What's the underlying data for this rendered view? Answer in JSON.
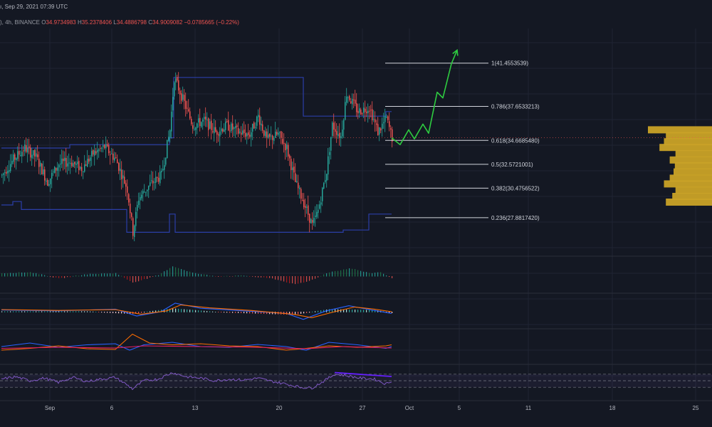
{
  "header": {
    "datetime": "ı, Sep 29, 2021 07:39 UTC",
    "symbol_fragment": "), 4h, BINANCE",
    "ohlc": [
      {
        "label": "O",
        "value": "34.9734983"
      },
      {
        "label": "H",
        "value": "35.2378406"
      },
      {
        "label": "L",
        "value": "34.4886798"
      },
      {
        "label": "C",
        "value": "34.9009082"
      }
    ],
    "change": "−0.0785665 (−0.22%)"
  },
  "chart_data": [
    {
      "type": "candlestick",
      "title": "",
      "interval": "4h",
      "exchange": "BINANCE",
      "x_ticks": [
        "Sep",
        "6",
        "13",
        "20",
        "27",
        "Oct",
        "5",
        "11",
        "18",
        "25"
      ],
      "ylim": [
        24.5,
        44.5
      ],
      "price_path": [
        [
          0,
          31.6
        ],
        [
          8,
          33.0
        ],
        [
          16,
          34.0
        ],
        [
          24,
          33.2
        ],
        [
          32,
          31.0
        ],
        [
          40,
          32.6
        ],
        [
          48,
          32.8
        ],
        [
          56,
          32.2
        ],
        [
          64,
          33.5
        ],
        [
          72,
          34.1
        ],
        [
          80,
          33.0
        ],
        [
          88,
          30.4
        ],
        [
          92,
          26.6
        ],
        [
          96,
          29.6
        ],
        [
          104,
          30.8
        ],
        [
          112,
          31.6
        ],
        [
          118,
          35.6
        ],
        [
          121,
          40.2
        ],
        [
          126,
          38.6
        ],
        [
          134,
          36.0
        ],
        [
          142,
          36.4
        ],
        [
          150,
          35.4
        ],
        [
          158,
          36.0
        ],
        [
          166,
          35.4
        ],
        [
          174,
          35.2
        ],
        [
          180,
          36.8
        ],
        [
          186,
          34.7
        ],
        [
          194,
          35.2
        ],
        [
          200,
          34.0
        ],
        [
          206,
          31.0
        ],
        [
          212,
          29.2
        ],
        [
          218,
          27.2
        ],
        [
          222,
          28.5
        ],
        [
          228,
          32.0
        ],
        [
          232,
          36.0
        ],
        [
          238,
          35.0
        ],
        [
          242,
          38.8
        ],
        [
          250,
          37.2
        ],
        [
          258,
          37.6
        ],
        [
          264,
          35.4
        ],
        [
          270,
          36.6
        ],
        [
          274,
          34.9
        ]
      ],
      "total_candles": 275,
      "fibonacci": [
        {
          "level": "1",
          "price": 41.4553539
        },
        {
          "level": "0.786",
          "price": 37.6533213
        },
        {
          "level": "0.618",
          "price": 34.668548
        },
        {
          "level": "0.5",
          "price": 32.5721001
        },
        {
          "level": "0.382",
          "price": 30.4756522
        },
        {
          "level": "0.236",
          "price": 27.881742
        }
      ],
      "fib_labels": [
        "1(41.4553539)",
        "0.786(37.6533213)",
        "0.618(34.6685480)",
        "0.5(32.5721001)",
        "0.382(30.4756522)",
        "0.236(27.8817420)"
      ],
      "projection_path": [
        [
          274,
          34.9
        ],
        [
          280,
          34.3
        ],
        [
          286,
          35.6
        ],
        [
          290,
          34.8
        ],
        [
          296,
          36.1
        ],
        [
          300,
          35.3
        ],
        [
          306,
          38.9
        ],
        [
          310,
          38.4
        ],
        [
          316,
          41.4
        ],
        [
          320,
          42.6
        ]
      ],
      "current_price": 34.9009082,
      "donchian_upper": [
        [
          0,
          34.0
        ],
        [
          40,
          34.0
        ],
        [
          48,
          34.3
        ],
        [
          112,
          34.3
        ],
        [
          118,
          34.9
        ],
        [
          121,
          40.2
        ],
        [
          200,
          40.2
        ],
        [
          212,
          36.8
        ],
        [
          240,
          36.8
        ],
        [
          270,
          37.2
        ],
        [
          274,
          37.2
        ]
      ],
      "donchian_lower": [
        [
          0,
          29.0
        ],
        [
          8,
          29.3
        ],
        [
          14,
          28.6
        ],
        [
          80,
          28.6
        ],
        [
          88,
          26.6
        ],
        [
          118,
          28.2
        ],
        [
          122,
          26.6
        ],
        [
          212,
          26.6
        ],
        [
          240,
          26.8
        ],
        [
          258,
          28.2
        ],
        [
          274,
          28.2
        ]
      ],
      "volume_profile": [
        {
          "price": 35.6,
          "size": 1.0
        },
        {
          "price": 35.1,
          "size": 0.72
        },
        {
          "price": 34.55,
          "size": 0.75
        },
        {
          "price": 34.05,
          "size": 0.82
        },
        {
          "price": 33.5,
          "size": 0.57
        },
        {
          "price": 32.95,
          "size": 0.66
        },
        {
          "price": 32.45,
          "size": 0.58
        },
        {
          "price": 31.9,
          "size": 0.6
        },
        {
          "price": 31.35,
          "size": 0.66
        },
        {
          "price": 30.85,
          "size": 0.75
        },
        {
          "price": 30.3,
          "size": 0.57
        },
        {
          "price": 29.75,
          "size": 0.62
        },
        {
          "price": 29.25,
          "size": 0.72
        }
      ]
    },
    {
      "type": "bar",
      "title": "",
      "histogram_path": [
        [
          0,
          0.3
        ],
        [
          20,
          0.4
        ],
        [
          40,
          -0.2
        ],
        [
          60,
          0.2
        ],
        [
          80,
          0.3
        ],
        [
          92,
          -0.6
        ],
        [
          110,
          0.1
        ],
        [
          120,
          1.0
        ],
        [
          135,
          0.3
        ],
        [
          150,
          0.0
        ],
        [
          170,
          0.05
        ],
        [
          190,
          -0.2
        ],
        [
          206,
          -0.8
        ],
        [
          215,
          -0.5
        ],
        [
          230,
          0.4
        ],
        [
          245,
          0.8
        ],
        [
          258,
          0.3
        ],
        [
          266,
          0.4
        ],
        [
          274,
          -0.2
        ]
      ]
    },
    {
      "type": "line",
      "title": "",
      "series": [
        {
          "color": "#2962ff",
          "path": [
            [
              0,
              0.2
            ],
            [
              40,
              0.1
            ],
            [
              80,
              0.3
            ],
            [
              95,
              -0.5
            ],
            [
              112,
              0.0
            ],
            [
              122,
              1.0
            ],
            [
              140,
              0.4
            ],
            [
              170,
              0.1
            ],
            [
              200,
              -0.2
            ],
            [
              212,
              -0.9
            ],
            [
              228,
              0.1
            ],
            [
              244,
              0.7
            ],
            [
              260,
              0.2
            ],
            [
              274,
              -0.2
            ]
          ]
        },
        {
          "color": "#ff6d00",
          "path": [
            [
              0,
              0.25
            ],
            [
              40,
              0.15
            ],
            [
              80,
              0.25
            ],
            [
              98,
              -0.3
            ],
            [
              116,
              0.1
            ],
            [
              126,
              0.8
            ],
            [
              146,
              0.45
            ],
            [
              175,
              0.15
            ],
            [
              205,
              -0.3
            ],
            [
              218,
              -0.7
            ],
            [
              234,
              0.0
            ],
            [
              248,
              0.55
            ],
            [
              262,
              0.3
            ],
            [
              274,
              0.0
            ]
          ]
        }
      ],
      "histogram_path": [
        [
          0,
          0.05
        ],
        [
          60,
          0.05
        ],
        [
          92,
          -0.2
        ],
        [
          120,
          0.4
        ],
        [
          150,
          0.0
        ],
        [
          205,
          -0.3
        ],
        [
          230,
          0.3
        ],
        [
          262,
          0.2
        ],
        [
          274,
          -0.1
        ]
      ]
    },
    {
      "type": "line",
      "title": "",
      "ylim": [
        0,
        100
      ],
      "series": [
        {
          "color": "#2962ff",
          "path": [
            [
              0,
              50
            ],
            [
              20,
              60
            ],
            [
              40,
              48
            ],
            [
              60,
              55
            ],
            [
              80,
              58
            ],
            [
              90,
              40
            ],
            [
              100,
              55
            ],
            [
              120,
              62
            ],
            [
              140,
              50
            ],
            [
              160,
              48
            ],
            [
              180,
              56
            ],
            [
              200,
              50
            ],
            [
              214,
              40
            ],
            [
              230,
              62
            ],
            [
              250,
              55
            ],
            [
              270,
              45
            ],
            [
              274,
              50
            ]
          ]
        },
        {
          "color": "#ff6d00",
          "path": [
            [
              0,
              40
            ],
            [
              20,
              45
            ],
            [
              40,
              52
            ],
            [
              60,
              44
            ],
            [
              80,
              42
            ],
            [
              92,
              85
            ],
            [
              104,
              60
            ],
            [
              120,
              55
            ],
            [
              140,
              58
            ],
            [
              160,
              52
            ],
            [
              180,
              50
            ],
            [
              200,
              40
            ],
            [
              214,
              45
            ],
            [
              230,
              52
            ],
            [
              250,
              48
            ],
            [
              270,
              52
            ],
            [
              274,
              55
            ]
          ]
        },
        {
          "color": "#e91e63",
          "path": [
            [
              0,
              45
            ],
            [
              40,
              48
            ],
            [
              80,
              46
            ],
            [
              100,
              52
            ],
            [
              140,
              50
            ],
            [
              180,
              48
            ],
            [
              214,
              44
            ],
            [
              240,
              50
            ],
            [
              274,
              46
            ]
          ]
        }
      ]
    },
    {
      "type": "line",
      "title": "",
      "ylim": [
        0,
        100
      ],
      "bands": [
        70,
        50,
        30
      ],
      "series": [
        {
          "color": "#7e57c2",
          "path": [
            [
              0,
              55
            ],
            [
              10,
              62
            ],
            [
              20,
              50
            ],
            [
              30,
              58
            ],
            [
              40,
              45
            ],
            [
              50,
              60
            ],
            [
              60,
              48
            ],
            [
              70,
              55
            ],
            [
              80,
              60
            ],
            [
              88,
              38
            ],
            [
              92,
              25
            ],
            [
              100,
              50
            ],
            [
              110,
              55
            ],
            [
              120,
              75
            ],
            [
              130,
              62
            ],
            [
              140,
              58
            ],
            [
              150,
              50
            ],
            [
              160,
              55
            ],
            [
              170,
              52
            ],
            [
              180,
              58
            ],
            [
              190,
              48
            ],
            [
              200,
              40
            ],
            [
              210,
              30
            ],
            [
              218,
              28
            ],
            [
              226,
              48
            ],
            [
              234,
              70
            ],
            [
              242,
              66
            ],
            [
              252,
              58
            ],
            [
              262,
              55
            ],
            [
              270,
              40
            ],
            [
              274,
              50
            ]
          ]
        }
      ],
      "divergence": {
        "from": [
          234,
          75
        ],
        "to": [
          274,
          63
        ]
      }
    }
  ]
}
